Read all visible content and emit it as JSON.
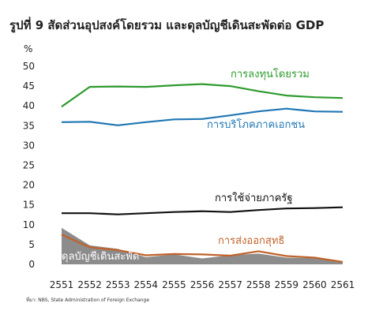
{
  "chart_data": {
    "type": "line",
    "title": "รูปที่ 9 สัดส่วนอุปสงค์โดยรวม และดุลบัญชีเดินสะพัดต่อ GDP",
    "ylabel": "%",
    "source": "ที่มา: NBS, State Administration of Foreign Exchange",
    "ylim": [
      0,
      50
    ],
    "yticks": [
      0,
      5,
      10,
      15,
      20,
      25,
      30,
      35,
      40,
      45,
      50
    ],
    "grid": false,
    "x": [
      "2551",
      "2552",
      "2553",
      "2554",
      "2555",
      "2556",
      "2557",
      "2558",
      "2559",
      "2560",
      "2561"
    ],
    "series": [
      {
        "name": "การลงทุนโดยรวม",
        "kind": "line",
        "color": "#2e9a2e",
        "values": [
          39.8,
          44.8,
          44.9,
          44.8,
          45.2,
          45.5,
          45.0,
          43.7,
          42.6,
          42.2,
          42.0
        ]
      },
      {
        "name": "การบริโภคภาคเอกชน",
        "kind": "line",
        "color": "#1f77b4",
        "values": [
          35.9,
          36.0,
          35.1,
          35.9,
          36.6,
          36.7,
          37.6,
          38.6,
          39.3,
          38.6,
          38.5
        ]
      },
      {
        "name": "การใช้จ่ายภาครัฐ",
        "kind": "line",
        "color": "#111111",
        "values": [
          12.9,
          12.9,
          12.6,
          12.9,
          13.2,
          13.4,
          13.2,
          13.7,
          14.1,
          14.2,
          14.4
        ]
      },
      {
        "name": "การส่งออกสุทธิ",
        "kind": "line",
        "color": "#c0622a",
        "values": [
          7.5,
          4.3,
          3.6,
          2.3,
          2.6,
          2.5,
          2.2,
          3.3,
          2.1,
          1.7,
          0.6
        ]
      },
      {
        "name": "ดุลบัญชีเดินสะพัด",
        "kind": "area",
        "color": "#8c8c8c",
        "values": [
          9.2,
          4.8,
          3.9,
          1.8,
          2.5,
          1.5,
          2.3,
          2.7,
          1.7,
          1.6,
          0.4
        ]
      }
    ]
  }
}
